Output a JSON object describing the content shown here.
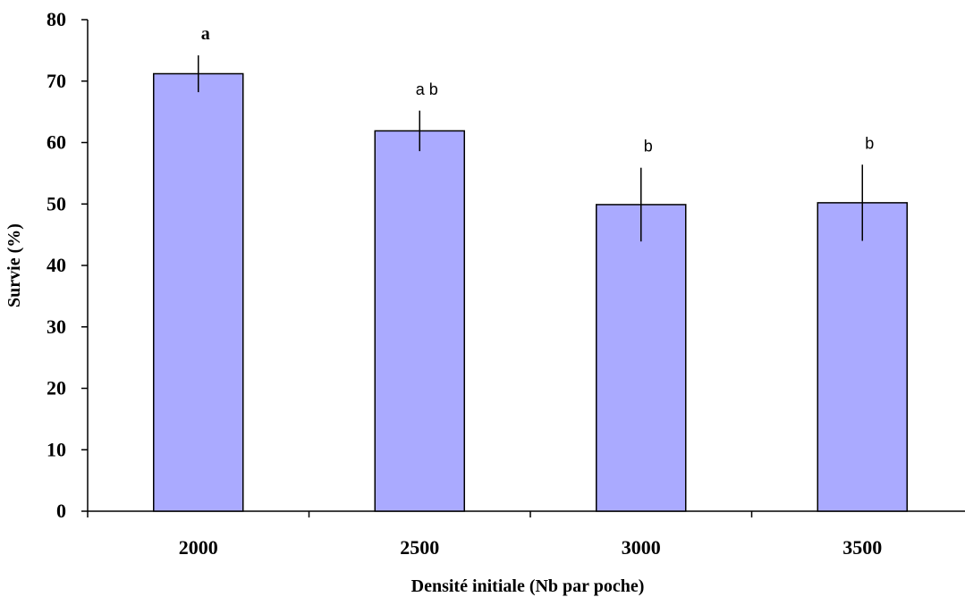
{
  "chart_data": {
    "type": "bar",
    "title": "",
    "xlabel": "Densité initiale (Nb par poche)",
    "ylabel": "Survie (%)",
    "ylim": [
      0,
      80
    ],
    "yticks": [
      0,
      10,
      20,
      30,
      40,
      50,
      60,
      70,
      80
    ],
    "grid": false,
    "legend": "none",
    "categories": [
      "2000",
      "2500",
      "3000",
      "3500"
    ],
    "values": [
      71.2,
      61.9,
      49.9,
      50.2
    ],
    "error_bars": [
      3.0,
      3.3,
      6.0,
      6.2
    ],
    "significance_labels": [
      "a",
      "a b",
      "b",
      "b"
    ],
    "bar_color": "#aaaaff",
    "bar_edge_color": "#000000"
  }
}
